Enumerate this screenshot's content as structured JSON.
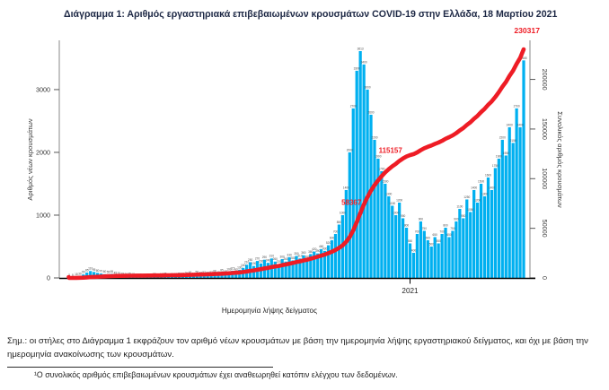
{
  "page": {
    "title": "Διάγραμμα 1: Αριθμός εργαστηριακά επιβεβαιωμένων κρουσμάτων COVID-19 στην Ελλάδα, 18 Μαρτίου 2021",
    "note": "Σημ.: οι στήλες στο Διάγραμμα 1 εκφράζουν τον αριθμό νέων κρουσμάτων με βάση την ημερομηνία λήψης εργαστηριακού δείγματος, και όχι με βάση την ημερομηνία ανακοίνωσης των κρουσμάτων.",
    "footnote": "¹Ο συνολικός αριθμός επιβεβαιωμένων κρουσμάτων έχει αναθεωρηθεί κατόπιν ελέγχου των δεδομένων."
  },
  "chart_data": {
    "type": "bar",
    "title": "Διάγραμμα 1: Αριθμός εργαστηριακά επιβεβαιωμένων κρουσμάτων COVID-19 στην Ελλάδα, 18 Μαρτίου 2021",
    "xlabel": "Ημερομηνία λήψης δείγματος",
    "ylabel_left": "Αριθμός νέων κρουσμάτων",
    "ylabel_right": "Συνολικός αριθμός κρουσμάτων",
    "left_ticks": [
      0,
      1000,
      2000,
      3000
    ],
    "right_ticks": [
      0,
      50000,
      100000,
      150000,
      200000
    ],
    "x_tick_labels": [
      "2021"
    ],
    "year_2021_start_index": 96,
    "bar_color": "#00b0f0",
    "line_color": "#ee1c25",
    "label_color": "#4d4d4d",
    "total_cases": 230317,
    "end_label": "230317",
    "milestones": [
      58367,
      115157
    ],
    "series_note": "daily new confirmed cases by sampling date, Feb 2020 - 18 Mar 2021 (approx., ~3-day resolution)",
    "bars": [
      3,
      8,
      18,
      30,
      55,
      85,
      110,
      95,
      80,
      70,
      60,
      55,
      65,
      45,
      35,
      28,
      20,
      25,
      18,
      14,
      12,
      16,
      9,
      14,
      22,
      12,
      18,
      26,
      15,
      21,
      18,
      28,
      24,
      35,
      48,
      30,
      58,
      42,
      52,
      38,
      52,
      68,
      48,
      85,
      65,
      100,
      115,
      90,
      130,
      160,
      210,
      250,
      190,
      270,
      230,
      290,
      240,
      310,
      260,
      220,
      300,
      260,
      330,
      280,
      350,
      310,
      360,
      300,
      380,
      420,
      390,
      460,
      430,
      520,
      600,
      700,
      850,
      1000,
      1400,
      2000,
      2700,
      3300,
      3613,
      3400,
      3000,
      2600,
      2200,
      1900,
      1700,
      1500,
      1300,
      1150,
      1000,
      1200,
      950,
      800,
      550,
      400,
      700,
      900,
      750,
      600,
      500,
      650,
      550,
      700,
      800,
      650,
      750,
      900,
      1100,
      950,
      1250,
      1050,
      1400,
      1200,
      1500,
      1300,
      1600,
      1400,
      1750,
      1900,
      2200,
      1950,
      2400,
      2150,
      2700,
      2400,
      3465
    ]
  }
}
